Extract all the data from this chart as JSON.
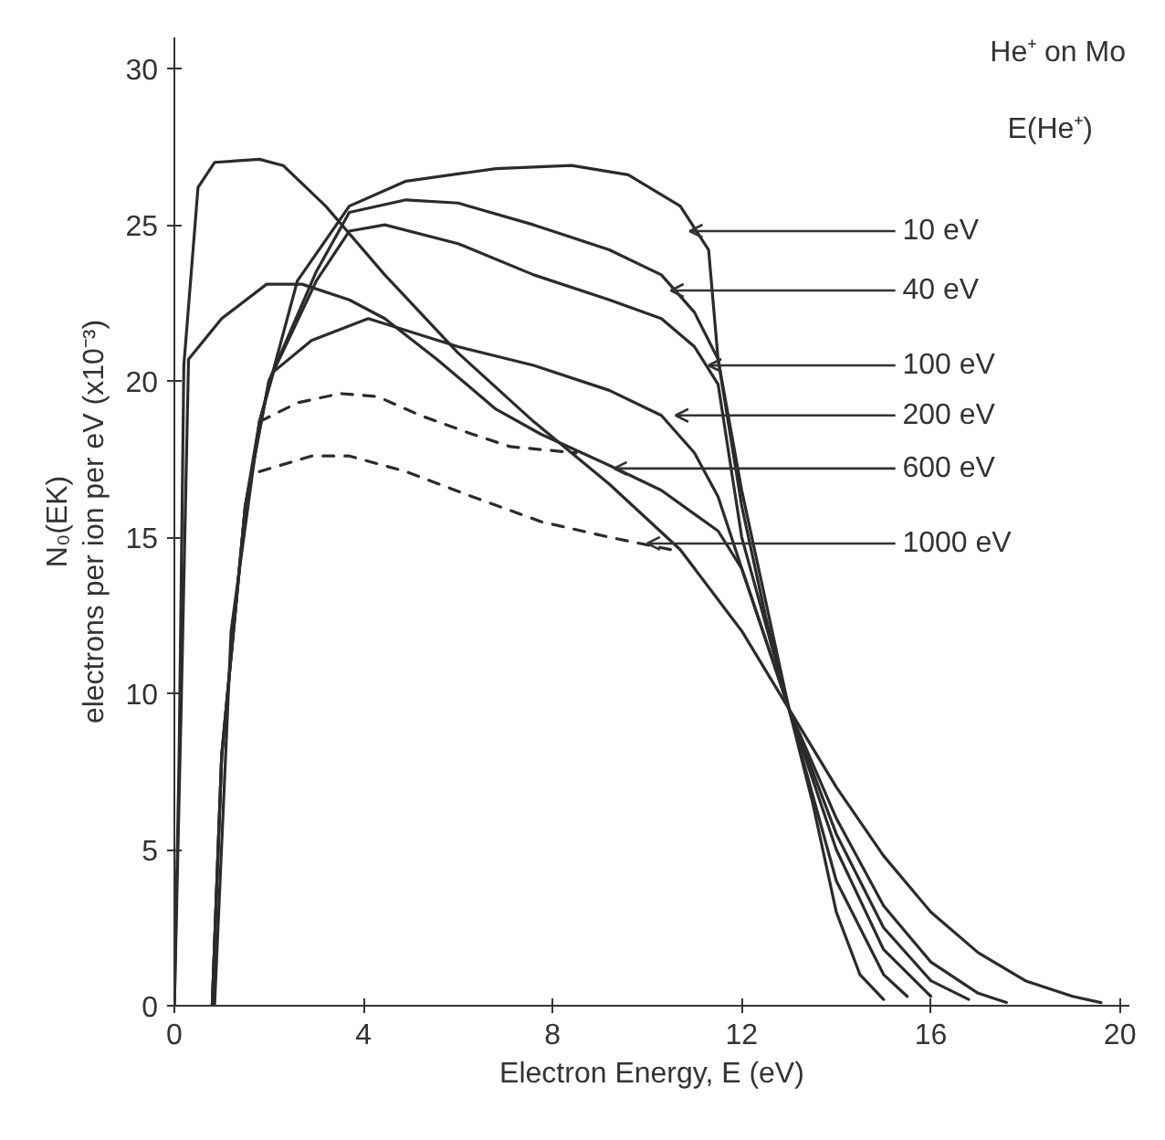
{
  "chart_data": {
    "type": "line",
    "title": "He⁺ on Mo",
    "legend_title": "E(He⁺)",
    "xlabel": "Electron Energy, E (eV)",
    "ylabel": "N₀(EK)\nelectrons per ion per eV (x10⁻³)",
    "xlim": [
      0,
      20.2
    ],
    "ylim": [
      0,
      31
    ],
    "xticks": [
      0,
      4,
      8,
      12,
      16,
      20
    ],
    "yticks": [
      0,
      5,
      10,
      15,
      20,
      25,
      30
    ],
    "grid": false,
    "line_style": "solid",
    "series": [
      {
        "color": "#2b2b2b",
        "x": [
          0.85,
          1.2,
          1.8,
          2.6,
          3.7,
          4.9,
          6.8,
          8.4,
          9.6,
          10.7,
          11.3,
          11.5,
          12,
          12.5,
          13,
          13.5,
          14,
          14.5,
          15
        ],
        "values": [
          0,
          12,
          18.7,
          23.2,
          25.6,
          26.4,
          26.8,
          26.9,
          26.6,
          25.6,
          24.2,
          20.7,
          16,
          12.5,
          9.5,
          6.5,
          3,
          1,
          0.2
        ]
      },
      {
        "color": "#2b2b2b",
        "x": [
          0.8,
          1,
          1.5,
          2,
          3,
          3.7,
          4.9,
          6,
          7.6,
          9.2,
          10.3,
          11,
          11.5,
          12,
          13,
          14,
          15,
          15.5
        ],
        "values": [
          0,
          8,
          16,
          20,
          23.5,
          25.4,
          25.8,
          25.7,
          25,
          24.2,
          23.4,
          22.2,
          20.7,
          16.5,
          9.5,
          4,
          1,
          0.3
        ]
      },
      {
        "color": "#2b2b2b",
        "x": [
          0.8,
          1,
          1.5,
          2,
          3,
          3.7,
          4.45,
          6,
          7.6,
          9.2,
          10.3,
          11,
          11.5,
          12,
          13,
          14,
          15,
          16
        ],
        "values": [
          0,
          8,
          16,
          20,
          23.2,
          24.8,
          25,
          24.4,
          23.4,
          22.6,
          22,
          21.1,
          19.9,
          15,
          9.5,
          5,
          1.8,
          0.3
        ]
      },
      {
        "color": "#2b2b2b",
        "x": [
          0.8,
          1,
          1.5,
          1.8,
          2.1,
          2.9,
          4.1,
          6,
          7.6,
          9.2,
          10.3,
          11,
          11.5,
          12,
          13,
          14,
          15,
          16,
          16.8
        ],
        "values": [
          0,
          8,
          16,
          18.7,
          20.3,
          21.3,
          22,
          21.1,
          20.5,
          19.7,
          18.9,
          17.7,
          16.3,
          14,
          9.5,
          5.5,
          2.5,
          0.8,
          0.2
        ]
      },
      {
        "color": "#2b2b2b",
        "x": [
          0,
          0.15,
          0.3,
          1,
          1.95,
          2.7,
          3.7,
          4.45,
          5.55,
          6.8,
          7.75,
          9.2,
          10.3,
          11.5,
          12,
          13,
          14,
          15,
          16,
          17,
          17.6
        ],
        "values": [
          0,
          10,
          20.7,
          22,
          23.1,
          23.1,
          22.6,
          22,
          20.7,
          19.1,
          18.3,
          17.3,
          16.5,
          15.2,
          14,
          9.5,
          6,
          3.2,
          1.4,
          0.4,
          0.1
        ]
      },
      {
        "color": "#2b2b2b",
        "x": [
          0,
          0.1,
          0.2,
          0.5,
          0.85,
          1.8,
          2.3,
          3.2,
          4.45,
          6,
          7.6,
          9.2,
          10.7,
          12,
          13,
          14,
          15,
          16,
          17,
          18,
          19,
          19.6
        ],
        "values": [
          0,
          8,
          20.5,
          26.2,
          27,
          27.1,
          26.9,
          25.6,
          23.4,
          20.9,
          18.7,
          16.7,
          14.6,
          12,
          9.5,
          7,
          4.8,
          3,
          1.7,
          0.8,
          0.3,
          0.1
        ]
      },
      {
        "color": "#2b2b2b",
        "line_style": "dashed",
        "x": [
          1.8,
          2.6,
          3.5,
          4.3,
          5.2,
          6.3,
          7.1,
          8.5
        ],
        "values": [
          18.7,
          19.3,
          19.6,
          19.5,
          18.9,
          18.3,
          17.9,
          17.7
        ]
      },
      {
        "color": "#2b2b2b",
        "line_style": "dashed",
        "x": [
          1.8,
          2.9,
          3.7,
          4.9,
          6.3,
          7.75,
          9.2,
          10.5
        ],
        "values": [
          17.1,
          17.6,
          17.6,
          17.1,
          16.3,
          15.5,
          15,
          14.6
        ]
      }
    ],
    "annotations": [
      {
        "text": "10 eV",
        "x": 10.9,
        "y": 24.8
      },
      {
        "text": "40 eV",
        "x": 10.5,
        "y": 22.9
      },
      {
        "text": "100 eV",
        "x": 11.3,
        "y": 20.5
      },
      {
        "text": "200 eV",
        "x": 10.6,
        "y": 18.9
      },
      {
        "text": "600 eV",
        "x": 9.3,
        "y": 17.2
      },
      {
        "text": "1000 eV",
        "x": 10.0,
        "y": 14.8
      }
    ]
  }
}
